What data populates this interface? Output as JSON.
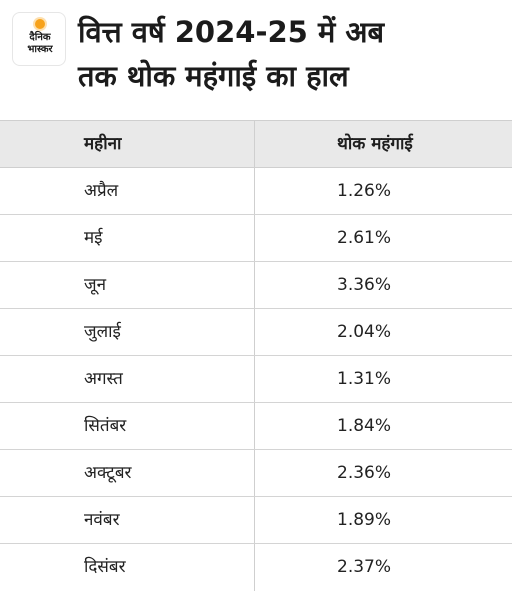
{
  "header": {
    "logo": {
      "line1": "दैनिक",
      "line2": "भास्कर"
    },
    "title_line1": "वित्त वर्ष 2024-25 में अब",
    "title_line2": "तक थोक महंगाई का हाल"
  },
  "chart_data": {
    "type": "table",
    "title": "वित्त वर्ष 2024-25 में अब तक थोक महंगाई का हाल",
    "columns": [
      "महीना",
      "थोक महंगाई"
    ],
    "rows": [
      {
        "month": "अप्रैल",
        "value": "1.26%"
      },
      {
        "month": "मई",
        "value": "2.61%"
      },
      {
        "month": "जून",
        "value": "3.36%"
      },
      {
        "month": "जुलाई",
        "value": "2.04%"
      },
      {
        "month": "अगस्त",
        "value": "1.31%"
      },
      {
        "month": "सितंबर",
        "value": "1.84%"
      },
      {
        "month": "अक्टूबर",
        "value": "2.36%"
      },
      {
        "month": "नवंबर",
        "value": "1.89%"
      },
      {
        "month": "दिसंबर",
        "value": "2.37%"
      }
    ]
  },
  "colors": {
    "header_bg": "#ffffff",
    "table_header_bg": "#e9e9e9",
    "border": "#cfcfcf",
    "logo_sun": "#f7a21b"
  }
}
